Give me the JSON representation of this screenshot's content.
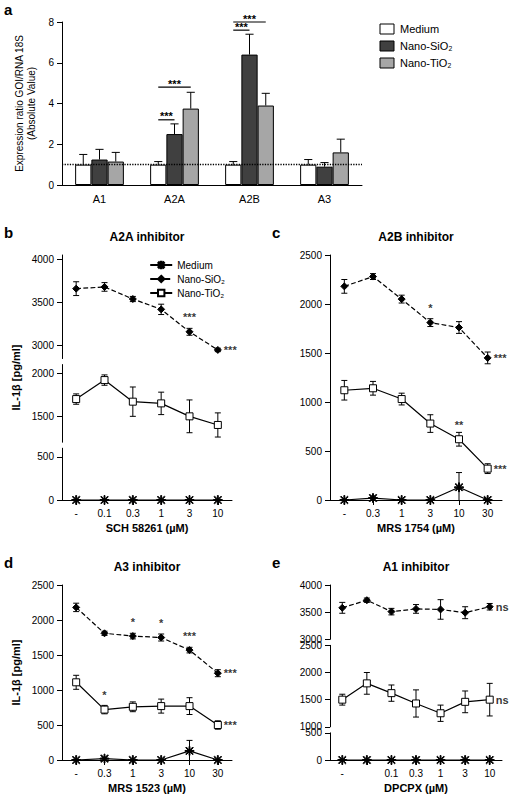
{
  "chart_data": [
    {
      "type": "bar",
      "panel_label": "a",
      "ylabel": "Expression ratio GOI/RNA 18S\n(Absolute Value)",
      "categories": [
        "A1",
        "A2A",
        "A2B",
        "A3"
      ],
      "series": [
        {
          "name": "Medium",
          "color": "#ffffff",
          "values": [
            1.0,
            1.0,
            1.0,
            1.0
          ],
          "errors": [
            0.5,
            0.15,
            0.15,
            0.25
          ]
        },
        {
          "name": "Nano-SiO₂",
          "color": "#404040",
          "values": [
            1.25,
            2.5,
            6.4,
            0.9
          ],
          "errors": [
            0.5,
            0.5,
            1.0,
            0.2
          ]
        },
        {
          "name": "Nano-TiO₂",
          "color": "#a6a6a6",
          "values": [
            1.15,
            3.75,
            3.9,
            1.6
          ],
          "errors": [
            0.45,
            0.8,
            0.6,
            0.65
          ]
        }
      ],
      "ylim": [
        0,
        8
      ],
      "yticks": [
        0,
        2,
        4,
        6,
        8
      ],
      "reference_line": 1,
      "brackets": [
        {
          "category": "A2A",
          "from": "Medium",
          "to": "Nano-SiO₂",
          "y": 3.2,
          "label": "***"
        },
        {
          "category": "A2A",
          "from": "Medium",
          "to": "Nano-TiO₂",
          "y": 4.8,
          "label": "***"
        },
        {
          "category": "A2B",
          "from": "Medium",
          "to": "Nano-SiO₂",
          "y": 7.6,
          "label": "***"
        },
        {
          "category": "A2B",
          "from": "Medium",
          "to": "Nano-TiO₂",
          "y": 8.0,
          "label": "***"
        }
      ],
      "legend": "upper right"
    },
    {
      "type": "line",
      "panel_label": "b",
      "title": "A2A inhibitor",
      "xlabel": "SCH 58261 (µM)",
      "ylabel": "IL-1β [pg/ml]",
      "categories": [
        "-",
        "0.1",
        "0.3",
        "1",
        "3",
        "10"
      ],
      "series": [
        {
          "name": "Medium",
          "color": "#000000",
          "marker": "asterisk",
          "line_style": "solid",
          "values": [
            0,
            0,
            0,
            0,
            0,
            0
          ],
          "errors": [
            0,
            0,
            0,
            0,
            0,
            0
          ]
        },
        {
          "name": "Nano-SiO₂",
          "color": "#000000",
          "marker": "diamond",
          "line_style": "dashed",
          "values": [
            3660,
            3680,
            3540,
            3420,
            3160,
            2950
          ],
          "errors": [
            80,
            50,
            30,
            60,
            40,
            20
          ]
        },
        {
          "name": "Nano-TiO₂",
          "color": "#000000",
          "marker": "open_square",
          "line_style": "solid",
          "values": [
            1700,
            1920,
            1670,
            1650,
            1500,
            1400
          ],
          "errors": [
            60,
            60,
            170,
            130,
            190,
            140
          ]
        }
      ],
      "y_segments": [
        {
          "ylim": [
            0,
            600
          ],
          "yticks": [
            0,
            500
          ]
        },
        {
          "ylim": [
            1200,
            2100
          ],
          "yticks": [
            1500,
            2000
          ]
        },
        {
          "ylim": [
            2850,
            4050
          ],
          "yticks": [
            3000,
            3500,
            4000
          ]
        }
      ],
      "annotations": [
        {
          "series": "Nano-SiO₂",
          "category": "3",
          "label": "***"
        },
        {
          "series": "Nano-SiO₂",
          "category": "10",
          "label": "***"
        }
      ],
      "legend": "upper right"
    },
    {
      "type": "line",
      "panel_label": "c",
      "title": "A2B inhibitor",
      "xlabel": "MRS 1754 (µM)",
      "categories": [
        "-",
        "0.3",
        "1",
        "3",
        "10",
        "30"
      ],
      "series": [
        {
          "name": "Medium",
          "color": "#000000",
          "marker": "asterisk",
          "line_style": "solid",
          "values": [
            0,
            20,
            0,
            0,
            130,
            0
          ],
          "errors": [
            0,
            20,
            0,
            0,
            150,
            0
          ]
        },
        {
          "name": "Nano-SiO₂",
          "color": "#000000",
          "marker": "diamond",
          "line_style": "dashed",
          "values": [
            2180,
            2280,
            2050,
            1810,
            1760,
            1450
          ],
          "errors": [
            70,
            30,
            40,
            40,
            60,
            60
          ]
        },
        {
          "name": "Nano-TiO₂",
          "color": "#000000",
          "marker": "open_square",
          "line_style": "solid",
          "values": [
            1120,
            1140,
            1030,
            780,
            620,
            320
          ],
          "errors": [
            100,
            70,
            60,
            90,
            70,
            50
          ]
        }
      ],
      "ylim": [
        0,
        2500
      ],
      "yticks": [
        0,
        500,
        1000,
        1500,
        2000,
        2500
      ],
      "annotations": [
        {
          "series": "Nano-SiO₂",
          "category": "3",
          "label": "*"
        },
        {
          "series": "Nano-SiO₂",
          "category": "30",
          "label": "***"
        },
        {
          "series": "Nano-TiO₂",
          "category": "10",
          "label": "**"
        },
        {
          "series": "Nano-TiO₂",
          "category": "30",
          "label": "***"
        }
      ]
    },
    {
      "type": "line",
      "panel_label": "d",
      "title": "A3 inhibitor",
      "xlabel": "MRS 1523 (µM)",
      "ylabel": "IL-1β [pg/ml]",
      "categories": [
        "-",
        "0.3",
        "1",
        "3",
        "10",
        "30"
      ],
      "series": [
        {
          "name": "Medium",
          "color": "#000000",
          "marker": "asterisk",
          "line_style": "solid",
          "values": [
            0,
            20,
            0,
            0,
            130,
            0
          ],
          "errors": [
            0,
            20,
            0,
            0,
            150,
            0
          ]
        },
        {
          "name": "Nano-SiO₂",
          "color": "#000000",
          "marker": "diamond",
          "line_style": "dashed",
          "values": [
            2180,
            1810,
            1770,
            1750,
            1570,
            1240
          ],
          "errors": [
            60,
            30,
            40,
            50,
            40,
            50
          ]
        },
        {
          "name": "Nano-TiO₂",
          "color": "#000000",
          "marker": "open_square",
          "line_style": "solid",
          "values": [
            1110,
            720,
            760,
            770,
            770,
            500
          ],
          "errors": [
            100,
            60,
            70,
            100,
            120,
            60
          ]
        }
      ],
      "ylim": [
        0,
        2500
      ],
      "yticks": [
        0,
        500,
        1000,
        1500,
        2000,
        2500
      ],
      "annotations": [
        {
          "series": "Nano-SiO₂",
          "category": "1",
          "label": "*"
        },
        {
          "series": "Nano-SiO₂",
          "category": "3",
          "label": "*"
        },
        {
          "series": "Nano-SiO₂",
          "category": "10",
          "label": "***"
        },
        {
          "series": "Nano-SiO₂",
          "category": "30",
          "label": "***"
        },
        {
          "series": "Nano-TiO₂",
          "category": "0.3",
          "label": "*"
        },
        {
          "series": "Nano-TiO₂",
          "category": "30",
          "label": "***"
        }
      ]
    },
    {
      "type": "line",
      "panel_label": "e",
      "title": "A1 inhibitor",
      "xlabel": "DPCPX (µM)",
      "categories": [
        "-",
        null,
        "0.1",
        "0.3",
        "1",
        "3",
        "10"
      ],
      "series": [
        {
          "name": "Medium",
          "color": "#000000",
          "marker": "asterisk",
          "line_style": "solid",
          "values": [
            0,
            0,
            0,
            0,
            0,
            0,
            0
          ],
          "errors": [
            0,
            0,
            0,
            0,
            0,
            0,
            0
          ]
        },
        {
          "name": "Nano-SiO₂",
          "color": "#000000",
          "marker": "diamond",
          "line_style": "dashed",
          "values": [
            3580,
            3720,
            3510,
            3560,
            3550,
            3490,
            3600
          ],
          "errors": [
            100,
            40,
            60,
            80,
            180,
            110,
            60
          ]
        },
        {
          "name": "Nano-TiO₂",
          "color": "#000000",
          "marker": "open_square",
          "line_style": "solid",
          "values": [
            1500,
            1800,
            1620,
            1430,
            1250,
            1460,
            1500
          ],
          "errors": [
            100,
            200,
            150,
            250,
            150,
            200,
            300
          ]
        }
      ],
      "y_segments": [
        {
          "ylim": [
            0,
            500
          ],
          "yticks": [
            0,
            500
          ]
        },
        {
          "ylim": [
            1000,
            2500
          ],
          "yticks": [
            1000,
            1500,
            2000,
            2500
          ]
        },
        {
          "ylim": [
            3000,
            4000
          ],
          "yticks": [
            3000,
            3500,
            4000
          ]
        }
      ],
      "annotations": [
        {
          "series": "Nano-SiO₂",
          "category": "10",
          "label": "ns"
        },
        {
          "series": "Nano-TiO₂",
          "category": "10",
          "label": "ns"
        }
      ]
    }
  ]
}
